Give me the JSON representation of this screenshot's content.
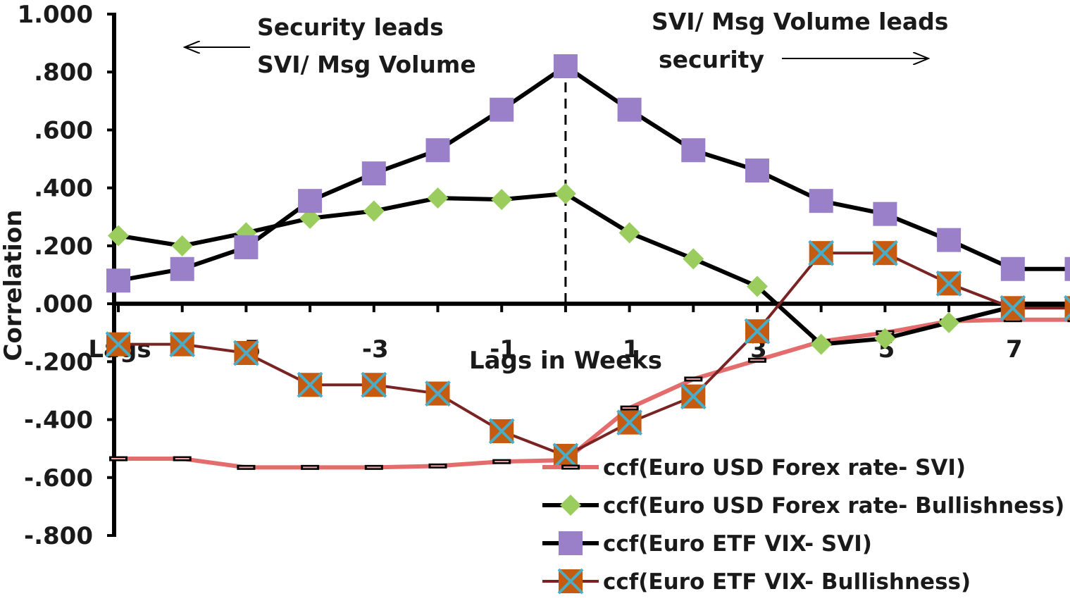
{
  "chart_data": {
    "type": "line",
    "title": "",
    "xlabel": "Lags in Weeks",
    "ylabel": "Correlation",
    "x": [
      -8,
      -7,
      -6,
      -5,
      -4,
      -3,
      -2,
      -1,
      0,
      1,
      2,
      3,
      4,
      5,
      6,
      7
    ],
    "x_tick_labels": [
      {
        "x": -8,
        "label": "Lags"
      },
      {
        "x": -6,
        "label": "-5"
      },
      {
        "x": -4,
        "label": "-3"
      },
      {
        "x": -2,
        "label": "-1"
      },
      {
        "x": 0,
        "label": "1"
      },
      {
        "x": 2,
        "label": "3"
      },
      {
        "x": 4,
        "label": "5"
      },
      {
        "x": 6,
        "label": "7"
      }
    ],
    "ylim": [
      -0.8,
      1.0
    ],
    "y_ticks": [
      -0.8,
      -0.6,
      -0.4,
      -0.2,
      0.0,
      0.2,
      0.4,
      0.6,
      0.8,
      1.0
    ],
    "y_tick_labels": [
      "-.800",
      "-.600",
      "-.400",
      "-.200",
      ".000",
      ".200",
      ".400",
      ".600",
      ".800",
      "1.000"
    ],
    "grid": false,
    "legend_position": "bottom-right",
    "series": [
      {
        "name": "ccf(Euro USD Forex rate- SVI)",
        "line_color": "#e46c6c",
        "marker": "dash",
        "marker_color": "#000000",
        "values": [
          -0.535,
          -0.535,
          -0.565,
          -0.565,
          -0.565,
          -0.56,
          -0.545,
          -0.54,
          -0.36,
          -0.26,
          -0.195,
          -0.13,
          -0.1,
          -0.06,
          -0.055,
          -0.055
        ]
      },
      {
        "name": "ccf(Euro USD Forex rate- Bullishness)",
        "line_color": "#000000",
        "marker": "diamond",
        "marker_color": "#9acd5e",
        "values": [
          0.235,
          0.2,
          0.245,
          0.295,
          0.32,
          0.365,
          0.36,
          0.38,
          0.245,
          0.155,
          0.06,
          -0.14,
          -0.12,
          -0.065,
          -0.01,
          -0.01
        ]
      },
      {
        "name": "ccf(Euro ETF VIX- SVI)",
        "line_color": "#000000",
        "marker": "square",
        "marker_color": "#9a7fc9",
        "values": [
          0.08,
          0.12,
          0.195,
          0.355,
          0.45,
          0.53,
          0.67,
          0.82,
          0.67,
          0.53,
          0.46,
          0.355,
          0.31,
          0.22,
          0.12,
          0.12
        ]
      },
      {
        "name": "ccf(Euro ETF VIX- Bullishness)",
        "line_color": "#7b2323",
        "marker": "x-square",
        "marker_color": "#c55a11",
        "values": [
          -0.14,
          -0.14,
          -0.17,
          -0.28,
          -0.28,
          -0.31,
          -0.44,
          -0.525,
          -0.41,
          -0.32,
          -0.095,
          0.175,
          0.175,
          0.07,
          -0.015,
          -0.015
        ]
      }
    ],
    "divider_at_x": -1,
    "annotations": [
      {
        "lines": [
          "Security leads",
          "SVI/ Msg Volume"
        ],
        "arrow": "left"
      },
      {
        "lines": [
          "SVI/ Msg Volume leads",
          "security"
        ],
        "arrow": "right"
      }
    ]
  }
}
